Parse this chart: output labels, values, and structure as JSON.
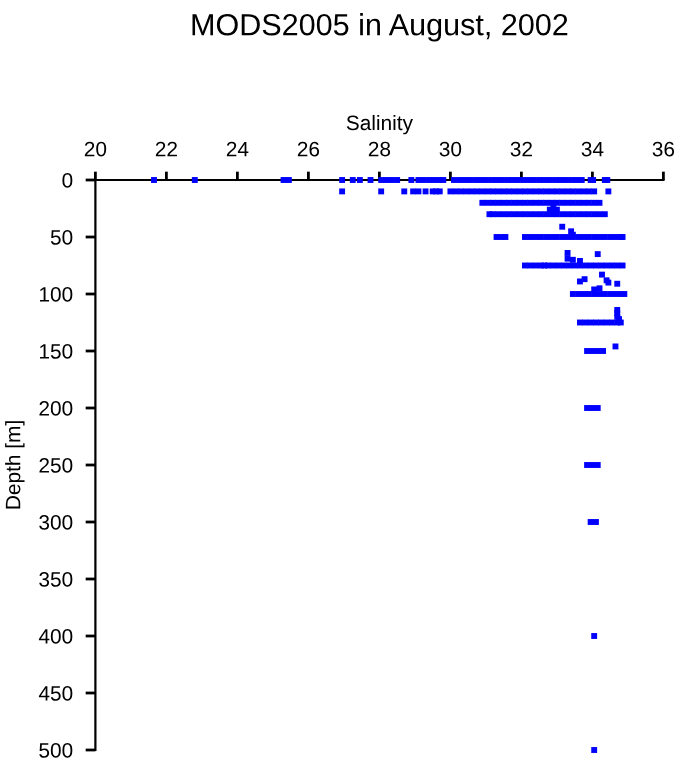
{
  "chart_data": {
    "type": "scatter",
    "title": "MODS2005 in August, 2002",
    "xlabel": "Salinity",
    "ylabel": "Depth [m]",
    "xlim": [
      20,
      36
    ],
    "xticks": [
      20,
      22,
      24,
      26,
      28,
      30,
      32,
      34,
      36
    ],
    "ylim": [
      500,
      0
    ],
    "yticks": [
      0,
      50,
      100,
      150,
      200,
      250,
      300,
      350,
      400,
      450,
      500
    ],
    "marker": "square",
    "series": [
      {
        "color": "#0000ff",
        "x": [
          21.65,
          22.8,
          25.3,
          25.45,
          26.95,
          27.25,
          27.45,
          27.75,
          28.05,
          28.2,
          28.35,
          28.5,
          28.9,
          29.1,
          29.25,
          29.4,
          29.55,
          29.7,
          29.8,
          30.1,
          30.25,
          30.4,
          30.55,
          30.7,
          30.85,
          31.0,
          31.15,
          31.3,
          31.45,
          31.6,
          31.75,
          31.9,
          32.05,
          32.2,
          32.35,
          32.5,
          32.65,
          32.8,
          32.95,
          33.1,
          33.25,
          33.4,
          33.55,
          33.7,
          33.95,
          34.02,
          34.35,
          34.42,
          26.95,
          28.05,
          28.7,
          28.95,
          29.1,
          29.3,
          29.5,
          29.6,
          29.7,
          30.0,
          30.15,
          30.3,
          30.45,
          30.6,
          30.75,
          30.9,
          31.05,
          31.2,
          31.35,
          31.5,
          31.65,
          31.8,
          31.95,
          32.1,
          32.25,
          32.4,
          32.55,
          32.7,
          32.85,
          33.0,
          33.15,
          33.3,
          33.45,
          33.6,
          33.75,
          33.9,
          34.05,
          34.45,
          30.9,
          31.05,
          31.2,
          31.35,
          31.5,
          31.65,
          31.8,
          31.95,
          32.1,
          32.25,
          32.4,
          32.55,
          32.7,
          32.85,
          33.0,
          33.15,
          33.3,
          33.45,
          33.6,
          33.75,
          33.9,
          34.05,
          34.2,
          32.9,
          32.9,
          32.8,
          33.0,
          31.1,
          31.2,
          31.35,
          31.5,
          31.65,
          31.8,
          31.95,
          32.1,
          32.25,
          32.4,
          32.55,
          32.7,
          32.85,
          33.0,
          33.15,
          33.3,
          33.45,
          33.6,
          33.75,
          33.9,
          34.05,
          34.2,
          34.35,
          33.15,
          33.4,
          33.45,
          31.3,
          31.45,
          31.55,
          32.1,
          32.25,
          32.4,
          32.55,
          32.7,
          32.85,
          33.0,
          33.15,
          33.3,
          33.45,
          33.6,
          33.75,
          33.9,
          34.05,
          34.2,
          34.35,
          34.5,
          34.65,
          34.8,
          34.85,
          33.3,
          34.15,
          33.3,
          33.45,
          33.65,
          32.1,
          32.25,
          32.4,
          32.55,
          32.65,
          32.75,
          32.9,
          33.05,
          33.2,
          33.35,
          33.5,
          33.65,
          33.8,
          33.95,
          34.1,
          34.25,
          34.4,
          34.55,
          34.7,
          34.85,
          34.27,
          33.65,
          33.78,
          34.4,
          34.45,
          34.7,
          34.05,
          34.2,
          33.45,
          33.6,
          33.75,
          33.9,
          34.05,
          34.2,
          34.35,
          34.5,
          34.65,
          34.8,
          34.9,
          34.7,
          34.7,
          34.7,
          34.75,
          33.65,
          33.8,
          33.95,
          34.1,
          34.25,
          34.4,
          34.55,
          34.7,
          34.8,
          34.65,
          33.85,
          34.0,
          34.15,
          34.3,
          33.85,
          34.0,
          34.15,
          33.85,
          34.0,
          34.15,
          33.95,
          34.1,
          34.05,
          34.05
        ],
        "values": [
          0,
          0,
          0,
          0,
          0,
          0,
          0,
          0,
          0,
          0,
          0,
          0,
          0,
          0,
          0,
          0,
          0,
          0,
          0,
          0,
          0,
          0,
          0,
          0,
          0,
          0,
          0,
          0,
          0,
          0,
          0,
          0,
          0,
          0,
          0,
          0,
          0,
          0,
          0,
          0,
          0,
          0,
          0,
          0,
          0,
          0,
          0,
          0,
          10,
          10,
          10,
          10,
          10,
          10,
          10,
          10,
          10,
          10,
          10,
          10,
          10,
          10,
          10,
          10,
          10,
          10,
          10,
          10,
          10,
          10,
          10,
          10,
          10,
          10,
          10,
          10,
          10,
          10,
          10,
          10,
          10,
          10,
          10,
          10,
          10,
          10,
          20,
          20,
          20,
          20,
          20,
          20,
          20,
          20,
          20,
          20,
          20,
          20,
          20,
          20,
          20,
          20,
          20,
          20,
          20,
          20,
          20,
          20,
          20,
          23,
          28,
          26,
          26,
          30,
          30,
          30,
          30,
          30,
          30,
          30,
          30,
          30,
          30,
          30,
          30,
          30,
          30,
          30,
          30,
          30,
          30,
          30,
          30,
          30,
          30,
          30,
          41,
          45,
          48,
          50,
          50,
          50,
          50,
          50,
          50,
          50,
          50,
          50,
          50,
          50,
          50,
          50,
          50,
          50,
          50,
          50,
          50,
          50,
          50,
          50,
          50,
          50,
          64,
          65,
          69,
          70,
          71,
          75,
          75,
          75,
          75,
          75,
          75,
          75,
          75,
          75,
          75,
          75,
          75,
          75,
          75,
          75,
          75,
          75,
          75,
          75,
          75,
          83,
          89,
          87,
          88,
          90,
          91,
          96,
          95,
          100,
          100,
          100,
          100,
          100,
          100,
          100,
          100,
          100,
          100,
          100,
          114,
          117,
          120,
          122,
          125,
          125,
          125,
          125,
          125,
          125,
          125,
          125,
          125,
          146,
          150,
          150,
          150,
          150,
          200,
          200,
          200,
          250,
          250,
          250,
          300,
          300,
          400,
          500
        ]
      }
    ]
  }
}
